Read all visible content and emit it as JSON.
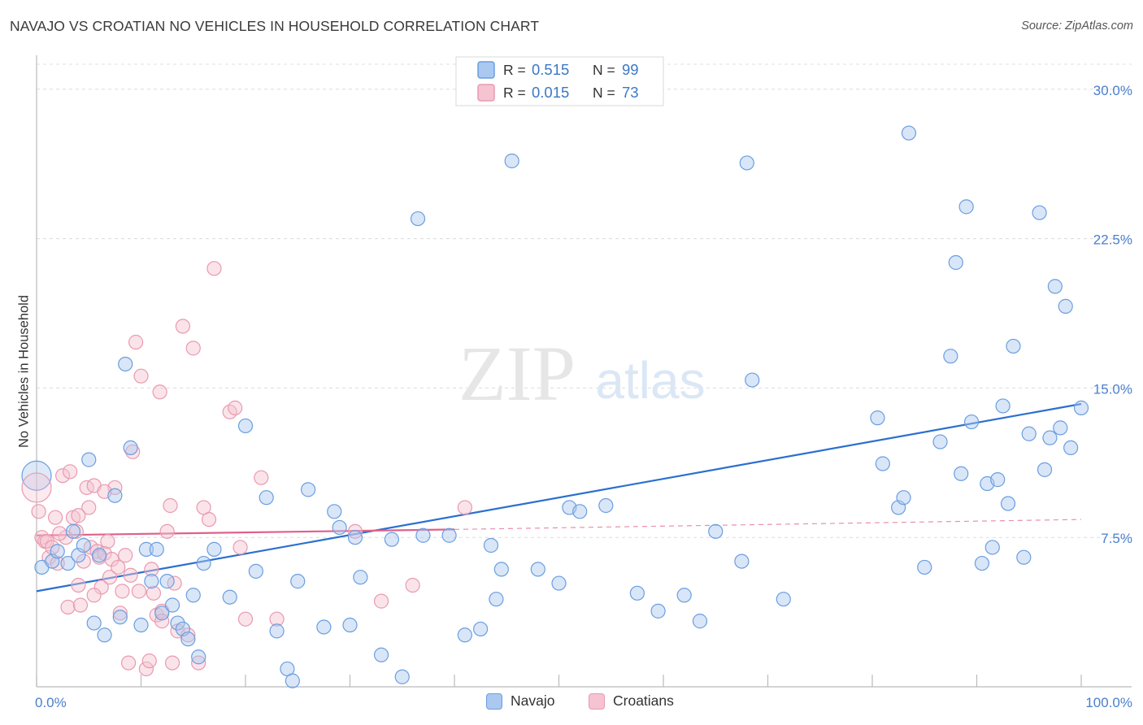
{
  "chart_data": {
    "type": "scatter",
    "title": "NAVAJO VS CROATIAN NO VEHICLES IN HOUSEHOLD CORRELATION CHART",
    "source": "Source: ZipAtlas.com",
    "xlabel": "",
    "ylabel": "No Vehicles in Household",
    "xlim": [
      0,
      100
    ],
    "ylim": [
      0,
      31.5
    ],
    "x_tick_labels": [
      "0.0%",
      "100.0%"
    ],
    "y_ticks": [
      {
        "value": 7.5,
        "label": "7.5%"
      },
      {
        "value": 15.0,
        "label": "15.0%"
      },
      {
        "value": 22.5,
        "label": "22.5%"
      },
      {
        "value": 30.0,
        "label": "30.0%"
      }
    ],
    "watermark": {
      "zip": "ZIP",
      "atlas": "atlas"
    },
    "legend": [
      {
        "r_label": "R =",
        "r_value": "0.515",
        "n_label": "N =",
        "n_value": "99"
      },
      {
        "r_label": "R =",
        "r_value": "0.015",
        "n_label": "N =",
        "n_value": "73"
      }
    ],
    "series": [
      {
        "name": "Navajo",
        "color": "#6a9ee0",
        "fill": "#aac8f0",
        "line_color": "#2b6fcf",
        "trend": {
          "x0": 0,
          "y0": 4.8,
          "x1": 100,
          "y1": 14.2
        },
        "points": [
          [
            0.5,
            6.0
          ],
          [
            1.5,
            6.3
          ],
          [
            2.0,
            6.8
          ],
          [
            3.0,
            6.2
          ],
          [
            3.5,
            7.8
          ],
          [
            4.0,
            6.6
          ],
          [
            4.5,
            7.1
          ],
          [
            5.0,
            11.4
          ],
          [
            5.5,
            3.2
          ],
          [
            6.0,
            6.6
          ],
          [
            6.5,
            2.6
          ],
          [
            7.5,
            9.6
          ],
          [
            8.0,
            3.5
          ],
          [
            8.5,
            16.2
          ],
          [
            9.0,
            12.0
          ],
          [
            10.0,
            3.1
          ],
          [
            10.5,
            6.9
          ],
          [
            11.0,
            5.3
          ],
          [
            11.5,
            6.9
          ],
          [
            12.0,
            3.7
          ],
          [
            12.5,
            5.3
          ],
          [
            13.0,
            4.1
          ],
          [
            13.5,
            3.2
          ],
          [
            14.0,
            2.9
          ],
          [
            14.5,
            2.4
          ],
          [
            15.0,
            4.6
          ],
          [
            15.5,
            1.5
          ],
          [
            16.0,
            6.2
          ],
          [
            17.0,
            6.9
          ],
          [
            18.5,
            4.5
          ],
          [
            20.0,
            13.1
          ],
          [
            21.0,
            5.8
          ],
          [
            22.0,
            9.5
          ],
          [
            23.0,
            2.8
          ],
          [
            24.0,
            0.9
          ],
          [
            24.5,
            0.3
          ],
          [
            25.0,
            5.3
          ],
          [
            26.0,
            9.9
          ],
          [
            27.5,
            3.0
          ],
          [
            28.5,
            8.8
          ],
          [
            29.0,
            8.0
          ],
          [
            30.0,
            3.1
          ],
          [
            30.5,
            7.5
          ],
          [
            31.0,
            5.5
          ],
          [
            33.0,
            1.6
          ],
          [
            34.0,
            7.4
          ],
          [
            35.0,
            0.5
          ],
          [
            36.5,
            23.5
          ],
          [
            37.0,
            7.6
          ],
          [
            39.5,
            7.6
          ],
          [
            41.0,
            2.6
          ],
          [
            42.5,
            2.9
          ],
          [
            43.5,
            7.1
          ],
          [
            44.0,
            4.4
          ],
          [
            44.5,
            5.9
          ],
          [
            45.5,
            26.4
          ],
          [
            48.0,
            5.9
          ],
          [
            50.0,
            5.2
          ],
          [
            51.0,
            9.0
          ],
          [
            52.0,
            8.8
          ],
          [
            54.5,
            9.1
          ],
          [
            57.5,
            4.7
          ],
          [
            59.5,
            3.8
          ],
          [
            62.0,
            4.6
          ],
          [
            63.5,
            3.3
          ],
          [
            65.0,
            7.8
          ],
          [
            67.5,
            6.3
          ],
          [
            68.0,
            26.3
          ],
          [
            68.5,
            15.4
          ],
          [
            71.5,
            4.4
          ],
          [
            80.5,
            13.5
          ],
          [
            81.0,
            11.2
          ],
          [
            82.5,
            9.0
          ],
          [
            83.0,
            9.5
          ],
          [
            83.5,
            27.8
          ],
          [
            85.0,
            6.0
          ],
          [
            86.5,
            12.3
          ],
          [
            87.5,
            16.6
          ],
          [
            88.0,
            21.3
          ],
          [
            88.5,
            10.7
          ],
          [
            89.0,
            24.1
          ],
          [
            89.5,
            13.3
          ],
          [
            90.5,
            6.2
          ],
          [
            91.0,
            10.2
          ],
          [
            91.5,
            7.0
          ],
          [
            92.0,
            10.4
          ],
          [
            92.5,
            14.1
          ],
          [
            93.0,
            9.2
          ],
          [
            93.5,
            17.1
          ],
          [
            94.5,
            6.5
          ],
          [
            95.0,
            12.7
          ],
          [
            96.0,
            23.8
          ],
          [
            96.5,
            10.9
          ],
          [
            97.0,
            12.5
          ],
          [
            97.5,
            20.1
          ],
          [
            98.0,
            13.0
          ],
          [
            98.5,
            19.1
          ],
          [
            99.0,
            12.0
          ],
          [
            100.0,
            14.0
          ]
        ]
      },
      {
        "name": "Croatians",
        "color": "#e99aaf",
        "fill": "#f5c3d1",
        "line_color": "#e0608a",
        "trend": {
          "x0": 0,
          "y0": 7.6,
          "x1": 40,
          "y1": 7.9
        },
        "trend_ext": {
          "x0": 40,
          "y0": 7.9,
          "x1": 100,
          "y1": 8.4
        },
        "points": [
          [
            0.2,
            8.8
          ],
          [
            0.5,
            7.5
          ],
          [
            0.8,
            7.3
          ],
          [
            1.0,
            7.3
          ],
          [
            1.2,
            6.5
          ],
          [
            1.5,
            7.0
          ],
          [
            1.8,
            8.5
          ],
          [
            2.0,
            6.2
          ],
          [
            2.5,
            10.6
          ],
          [
            2.8,
            7.5
          ],
          [
            3.0,
            4.0
          ],
          [
            3.2,
            10.8
          ],
          [
            3.5,
            8.5
          ],
          [
            3.8,
            7.8
          ],
          [
            4.0,
            5.1
          ],
          [
            4.2,
            4.1
          ],
          [
            4.5,
            6.3
          ],
          [
            4.8,
            10.0
          ],
          [
            5.0,
            9.0
          ],
          [
            5.2,
            7.0
          ],
          [
            5.5,
            10.1
          ],
          [
            5.8,
            6.8
          ],
          [
            6.0,
            6.5
          ],
          [
            6.2,
            5.0
          ],
          [
            6.5,
            6.7
          ],
          [
            6.8,
            7.3
          ],
          [
            7.0,
            5.5
          ],
          [
            7.2,
            6.4
          ],
          [
            7.5,
            10.0
          ],
          [
            7.8,
            6.0
          ],
          [
            8.0,
            3.7
          ],
          [
            8.2,
            4.8
          ],
          [
            8.5,
            6.6
          ],
          [
            8.8,
            1.2
          ],
          [
            9.0,
            5.6
          ],
          [
            9.2,
            11.8
          ],
          [
            9.5,
            17.3
          ],
          [
            9.8,
            4.8
          ],
          [
            10.0,
            15.6
          ],
          [
            10.5,
            0.9
          ],
          [
            10.8,
            1.3
          ],
          [
            11.0,
            5.9
          ],
          [
            11.2,
            4.7
          ],
          [
            11.5,
            3.6
          ],
          [
            11.8,
            14.8
          ],
          [
            12.0,
            3.8
          ],
          [
            12.5,
            7.8
          ],
          [
            12.8,
            9.1
          ],
          [
            13.0,
            1.2
          ],
          [
            13.2,
            5.2
          ],
          [
            13.5,
            2.8
          ],
          [
            14.0,
            18.1
          ],
          [
            14.5,
            2.6
          ],
          [
            15.0,
            17.0
          ],
          [
            15.5,
            1.2
          ],
          [
            16.0,
            9.0
          ],
          [
            16.5,
            8.4
          ],
          [
            17.0,
            21.0
          ],
          [
            18.5,
            13.8
          ],
          [
            19.0,
            14.0
          ],
          [
            19.5,
            7.0
          ],
          [
            20.0,
            3.4
          ],
          [
            21.5,
            10.5
          ],
          [
            23.0,
            3.4
          ],
          [
            30.5,
            7.8
          ],
          [
            33.0,
            4.3
          ],
          [
            36.0,
            5.1
          ],
          [
            41.0,
            9.0
          ],
          [
            6.5,
            9.8
          ],
          [
            2.2,
            7.7
          ],
          [
            4.0,
            8.6
          ],
          [
            5.5,
            4.6
          ],
          [
            12.0,
            3.3
          ]
        ]
      }
    ]
  }
}
